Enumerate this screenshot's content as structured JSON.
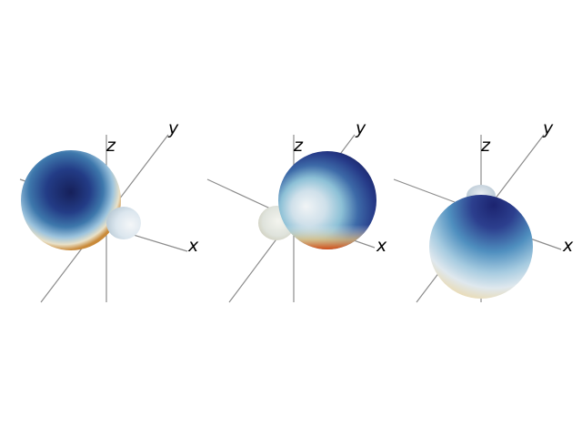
{
  "panels": [
    {
      "axis_labels": {
        "x": "x",
        "y": "y",
        "z": "z"
      }
    },
    {
      "axis_labels": {
        "x": "x",
        "y": "y",
        "z": "z"
      }
    },
    {
      "axis_labels": {
        "x": "x",
        "y": "y",
        "z": "z"
      }
    }
  ],
  "colors": {
    "axis": "#8c8c8c",
    "sphere_dark": "#1f2b6e",
    "sphere_mid": "#4a8fc0",
    "sphere_light": "#e8eff4",
    "sphere_warm": "#e07a20"
  }
}
